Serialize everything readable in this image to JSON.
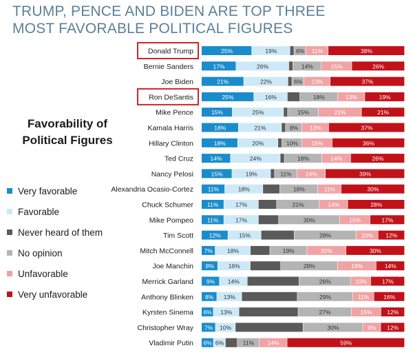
{
  "headline_lines": [
    "TRUMP, PENCE AND BIDEN ARE TOP THREE",
    "MOST FAVORABLE POLITICAL FIGURES"
  ],
  "subtitle_lines": [
    "Favorability of",
    "Political Figures"
  ],
  "legend": [
    {
      "label": "Very favorable",
      "color": "#1b8ccb"
    },
    {
      "label": "Favorable",
      "color": "#cde9f8"
    },
    {
      "label": "Never heard of them",
      "color": "#5a5a5a"
    },
    {
      "label": "No opinion",
      "color": "#b4b4b4"
    },
    {
      "label": "Unfavorable",
      "color": "#f0a3a5"
    },
    {
      "label": "Very unfavorable",
      "color": "#c1121a"
    }
  ],
  "highlighted": [
    "Donald Trump",
    "Ron DeSantis"
  ],
  "highlight_color": "#d0222a",
  "chart_data": {
    "type": "bar",
    "orientation": "horizontal",
    "stacked": true,
    "unit": "%",
    "categories": [
      "Donald Trump",
      "Bernie Sanders",
      "Joe Biden",
      "Ron DeSantis",
      "Mike Pence",
      "Kamala Harris",
      "Hillary Clinton",
      "Ted Cruz",
      "Nancy Pelosi",
      "Alexandria Ocasio-Cortez",
      "Chuck Schumer",
      "Mike Pompeo",
      "Tim Scott",
      "Mitch McConnell",
      "Joe Manchin",
      "Merrick Garland",
      "Anthony Blinken",
      "Kyrsten Sinema",
      "Christopher Wray",
      "Vladimir Putin"
    ],
    "series": [
      {
        "name": "Very favorable",
        "color": "#1b8ccb",
        "values": [
          25,
          17,
          21,
          25,
          15,
          18,
          18,
          14,
          15,
          11,
          11,
          11,
          12,
          7,
          8,
          9,
          8,
          6,
          7,
          6
        ]
      },
      {
        "name": "Favorable",
        "color": "#cde9f8",
        "values": [
          19,
          26,
          22,
          16,
          25,
          21,
          20,
          24,
          19,
          18,
          17,
          17,
          15,
          18,
          16,
          14,
          13,
          13,
          10,
          6
        ]
      },
      {
        "name": "Never heard of them",
        "color": "#5a5a5a",
        "values": [
          2,
          2,
          2,
          6,
          2,
          2,
          2,
          2,
          2,
          8,
          9,
          10,
          15,
          10,
          15,
          26,
          29,
          30,
          34,
          6
        ]
      },
      {
        "name": "No opinion",
        "color": "#b4b4b4",
        "values": [
          6,
          14,
          6,
          18,
          15,
          8,
          10,
          18,
          11,
          18,
          21,
          30,
          28,
          19,
          28,
          26,
          29,
          27,
          30,
          11
        ]
      },
      {
        "name": "Unfavorable",
        "color": "#f0a3a5",
        "values": [
          11,
          15,
          13,
          13,
          21,
          13,
          15,
          14,
          14,
          11,
          14,
          15,
          10,
          20,
          19,
          10,
          11,
          15,
          9,
          14
        ]
      },
      {
        "name": "Very unfavorable",
        "color": "#c1121a",
        "values": [
          38,
          26,
          37,
          19,
          21,
          37,
          36,
          26,
          39,
          30,
          28,
          17,
          12,
          30,
          14,
          17,
          16,
          12,
          12,
          59
        ]
      }
    ],
    "labels": [
      [
        "25%",
        "19%",
        "",
        "6%",
        "11%",
        "38%"
      ],
      [
        "17%",
        "26%",
        "",
        "14%",
        "15%",
        "26%"
      ],
      [
        "21%",
        "22%",
        "",
        "6%",
        "13%",
        "37%"
      ],
      [
        "25%",
        "16%",
        "",
        "18%",
        "13%",
        "19%"
      ],
      [
        "15%",
        "25%",
        "",
        "15%",
        "21%",
        "21%"
      ],
      [
        "18%",
        "21%",
        "",
        "8%",
        "13%",
        "37%"
      ],
      [
        "18%",
        "20%",
        "",
        "10%",
        "15%",
        "36%"
      ],
      [
        "14%",
        "24%",
        "",
        "18%",
        "14%",
        "26%"
      ],
      [
        "15%",
        "19%",
        "",
        "11%",
        "14%",
        "39%"
      ],
      [
        "11%",
        "18%",
        "",
        "18%",
        "11%",
        "30%"
      ],
      [
        "11%",
        "17%",
        "",
        "21%",
        "14%",
        "28%"
      ],
      [
        "11%",
        "17%",
        "",
        "30%",
        "15%",
        "17%"
      ],
      [
        "12%",
        "15%",
        "",
        "28%",
        "10%",
        "12%"
      ],
      [
        "7%",
        "18%",
        "",
        "19%",
        "20%",
        "30%"
      ],
      [
        "8%",
        "16%",
        "",
        "28%",
        "19%",
        "14%"
      ],
      [
        "9%",
        "14%",
        "",
        "26%",
        "10%",
        "17%"
      ],
      [
        "8%",
        "13%",
        "",
        "29%",
        "11%",
        "16%"
      ],
      [
        "6%",
        "13%",
        "",
        "27%",
        "15%",
        "12%"
      ],
      [
        "7%",
        "10%",
        "",
        "30%",
        "9%",
        "12%"
      ],
      [
        "6%",
        "6%",
        "",
        "11%",
        "14%",
        "59%"
      ]
    ]
  }
}
